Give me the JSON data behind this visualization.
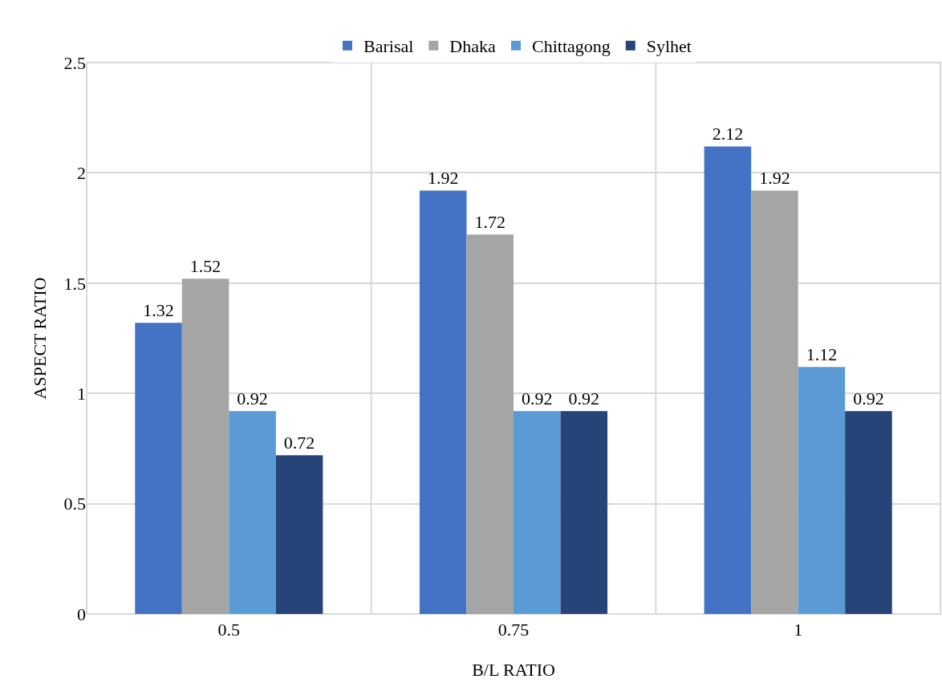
{
  "chart_data": {
    "type": "bar",
    "xlabel": "B/L RATIO",
    "ylabel": "ASPECT RATIO",
    "categories": [
      "0.5",
      "0.75",
      "1"
    ],
    "series": [
      {
        "name": "Barisal",
        "color": "#4472c4",
        "values": [
          1.32,
          1.92,
          2.12
        ]
      },
      {
        "name": "Dhaka",
        "color": "#a5a5a5",
        "values": [
          1.52,
          1.72,
          1.92
        ]
      },
      {
        "name": "Chittagong",
        "color": "#5b9bd5",
        "values": [
          0.92,
          0.92,
          1.12
        ]
      },
      {
        "name": "Sylhet",
        "color": "#264478",
        "values": [
          0.72,
          0.92,
          0.92
        ]
      }
    ],
    "ylim": [
      0,
      2.5
    ],
    "yticks": [
      0,
      0.5,
      1,
      1.5,
      2,
      2.5
    ],
    "grid": true,
    "legend": "top",
    "data_labels": true
  }
}
